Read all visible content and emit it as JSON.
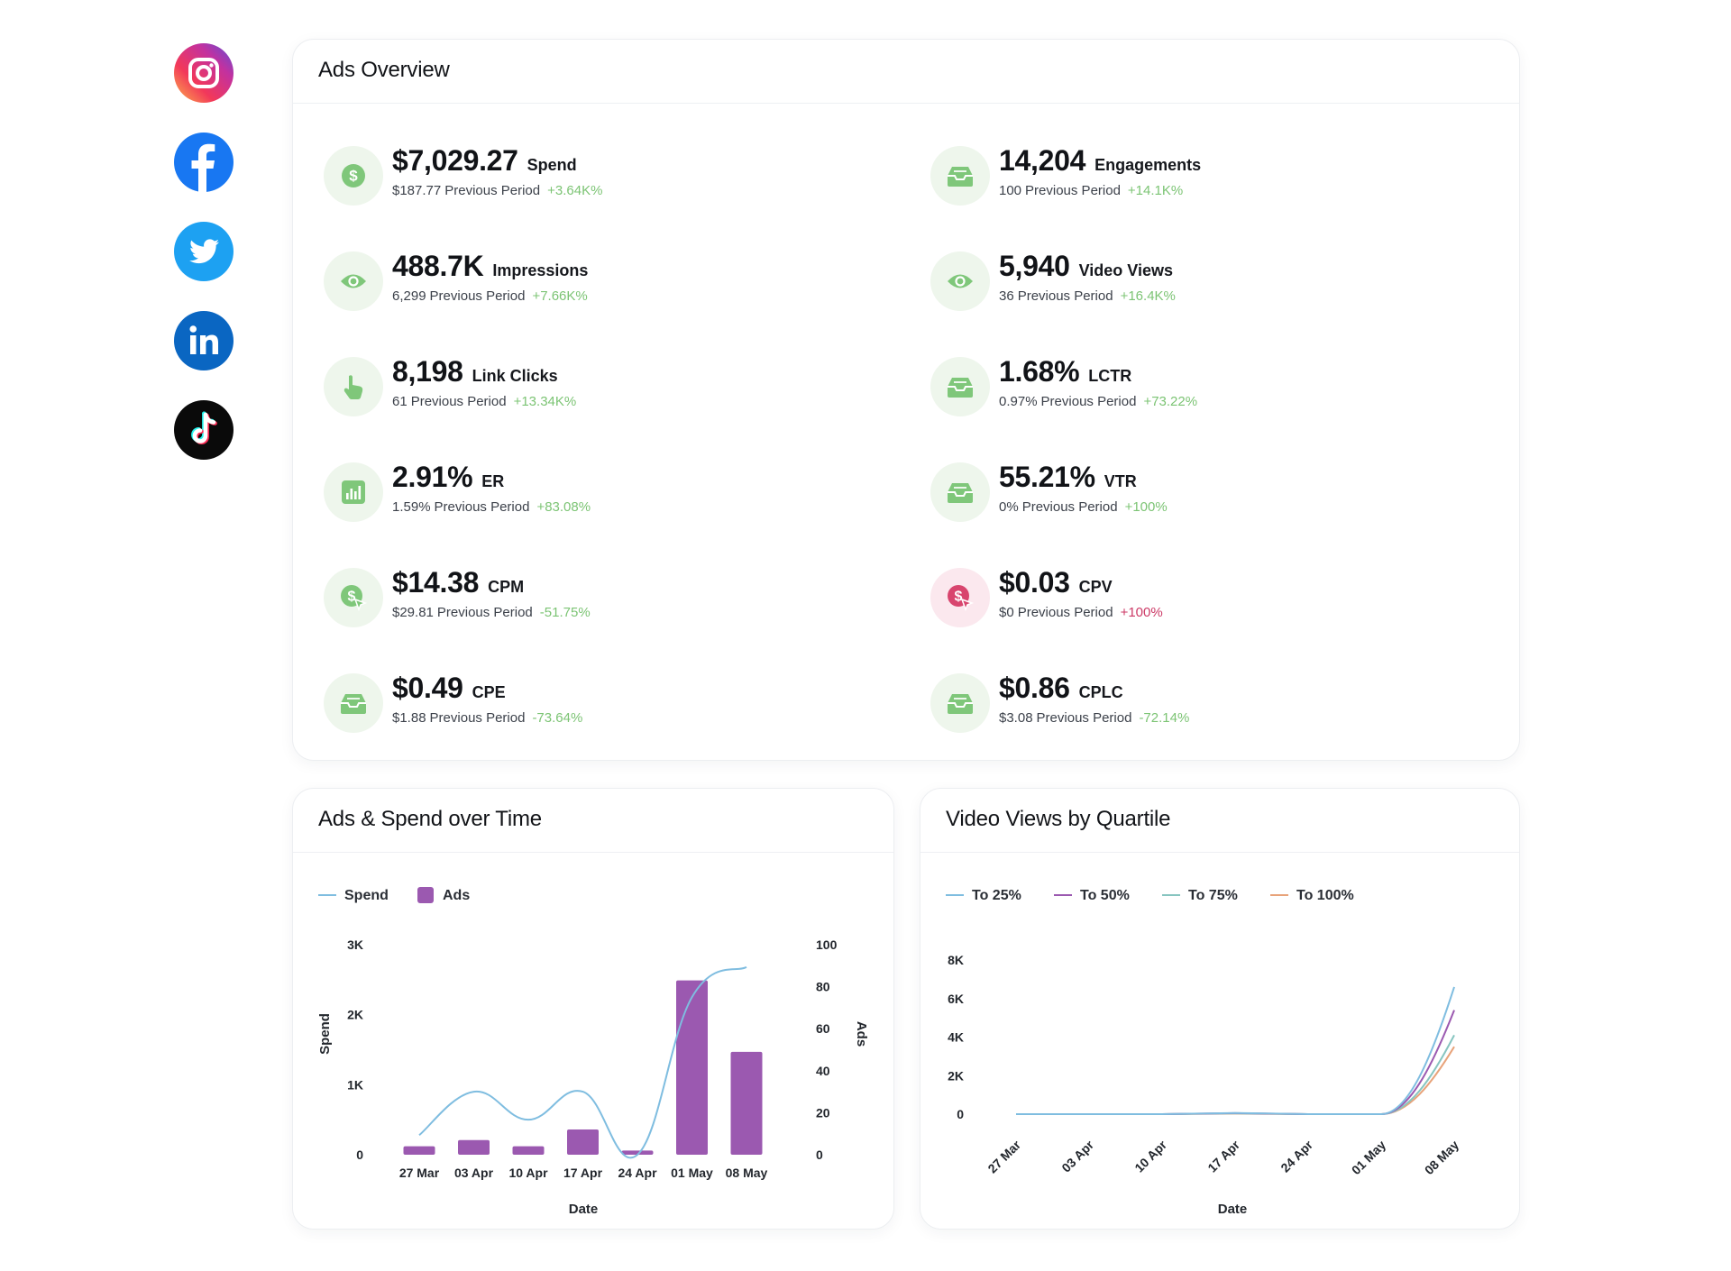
{
  "colors": {
    "positive": "#7cc474",
    "negative": "#cc3a66",
    "icon_green": "#7fc77a",
    "icon_red": "#d8456e",
    "spend_line": "#7fbde0",
    "ads_bar": "#9b59b0",
    "q25": "#7fbde0",
    "q50": "#9b59b0",
    "q75": "#87c5c0",
    "q100": "#e8a37a"
  },
  "social": [
    {
      "name": "instagram",
      "icon": "instagram-icon",
      "active": true
    },
    {
      "name": "facebook",
      "icon": "facebook-icon",
      "active": false
    },
    {
      "name": "twitter",
      "icon": "twitter-icon",
      "active": false
    },
    {
      "name": "linkedin",
      "icon": "linkedin-icon",
      "active": false
    },
    {
      "name": "tiktok",
      "icon": "tiktok-icon",
      "active": false
    }
  ],
  "overview": {
    "title": "Ads Overview",
    "prev_label": "Previous Period",
    "metrics": [
      {
        "value": "$7,029.27",
        "label": "Spend",
        "prev": "$187.77",
        "change": "+3.64K%",
        "icon": "dollar-icon",
        "trend": "positive"
      },
      {
        "value": "14,204",
        "label": "Engagements",
        "prev": "100",
        "change": "+14.1K%",
        "icon": "inbox-icon",
        "trend": "positive"
      },
      {
        "value": "488.7K",
        "label": "Impressions",
        "prev": "6,299",
        "change": "+7.66K%",
        "icon": "eye-icon",
        "trend": "positive"
      },
      {
        "value": "5,940",
        "label": "Video Views",
        "prev": "36",
        "change": "+16.4K%",
        "icon": "eye-icon",
        "trend": "positive"
      },
      {
        "value": "8,198",
        "label": "Link Clicks",
        "prev": "61",
        "change": "+13.34K%",
        "icon": "pointer-hand-icon",
        "trend": "positive"
      },
      {
        "value": "1.68%",
        "label": "LCTR",
        "prev": "0.97%",
        "change": "+73.22%",
        "icon": "inbox-icon",
        "trend": "positive"
      },
      {
        "value": "2.91%",
        "label": "ER",
        "prev": "1.59%",
        "change": "+83.08%",
        "icon": "bar-chart-icon",
        "trend": "positive"
      },
      {
        "value": "55.21%",
        "label": "VTR",
        "prev": "0%",
        "change": "+100%",
        "icon": "inbox-icon",
        "trend": "positive"
      },
      {
        "value": "$14.38",
        "label": "CPM",
        "prev": "$29.81",
        "change": "-51.75%",
        "icon": "dollar-cursor-icon",
        "trend": "positive"
      },
      {
        "value": "$0.03",
        "label": "CPV",
        "prev": "$0",
        "change": "+100%",
        "icon": "dollar-cursor-icon",
        "trend": "negative"
      },
      {
        "value": "$0.49",
        "label": "CPE",
        "prev": "$1.88",
        "change": "-73.64%",
        "icon": "inbox-icon",
        "trend": "positive"
      },
      {
        "value": "$0.86",
        "label": "CPLC",
        "prev": "$3.08",
        "change": "-72.14%",
        "icon": "inbox-icon",
        "trend": "positive"
      }
    ]
  },
  "chart_data": [
    {
      "type": "bar",
      "title": "Ads & Spend over Time",
      "categories": [
        "27 Mar",
        "03 Apr",
        "10 Apr",
        "17 Apr",
        "24 Apr",
        "01 May",
        "08 May"
      ],
      "series": [
        {
          "name": "Spend",
          "kind": "line",
          "axis": "left",
          "values": [
            280,
            900,
            500,
            900,
            0,
            2250,
            2680
          ]
        },
        {
          "name": "Ads",
          "kind": "bar",
          "axis": "right",
          "values": [
            4,
            7,
            4,
            12,
            2,
            83,
            49
          ]
        }
      ],
      "xlabel": "Date",
      "ylabel": "Spend",
      "y2label": "Ads",
      "ylim": [
        0,
        3000
      ],
      "y2lim": [
        0,
        100
      ],
      "yticks": [
        "0",
        "1K",
        "2K",
        "3K"
      ],
      "y2ticks": [
        "0",
        "20",
        "40",
        "60",
        "80",
        "100"
      ],
      "legend": "top-left"
    },
    {
      "type": "line",
      "title": "Video Views by Quartile",
      "categories": [
        "27 Mar",
        "03 Apr",
        "10 Apr",
        "17 Apr",
        "24 Apr",
        "01 May",
        "08 May"
      ],
      "series": [
        {
          "name": "To 25%",
          "values": [
            0,
            0,
            0,
            60,
            0,
            0,
            6600
          ]
        },
        {
          "name": "To 50%",
          "values": [
            0,
            0,
            0,
            50,
            0,
            0,
            5400
          ]
        },
        {
          "name": "To 75%",
          "values": [
            0,
            0,
            0,
            40,
            0,
            0,
            4100
          ]
        },
        {
          "name": "To 100%",
          "values": [
            0,
            0,
            0,
            30,
            0,
            0,
            3500
          ]
        }
      ],
      "xlabel": "Date",
      "ylabel": "",
      "ylim": [
        0,
        8000
      ],
      "yticks": [
        "0",
        "2K",
        "4K",
        "6K",
        "8K"
      ],
      "legend": "top-left"
    }
  ]
}
